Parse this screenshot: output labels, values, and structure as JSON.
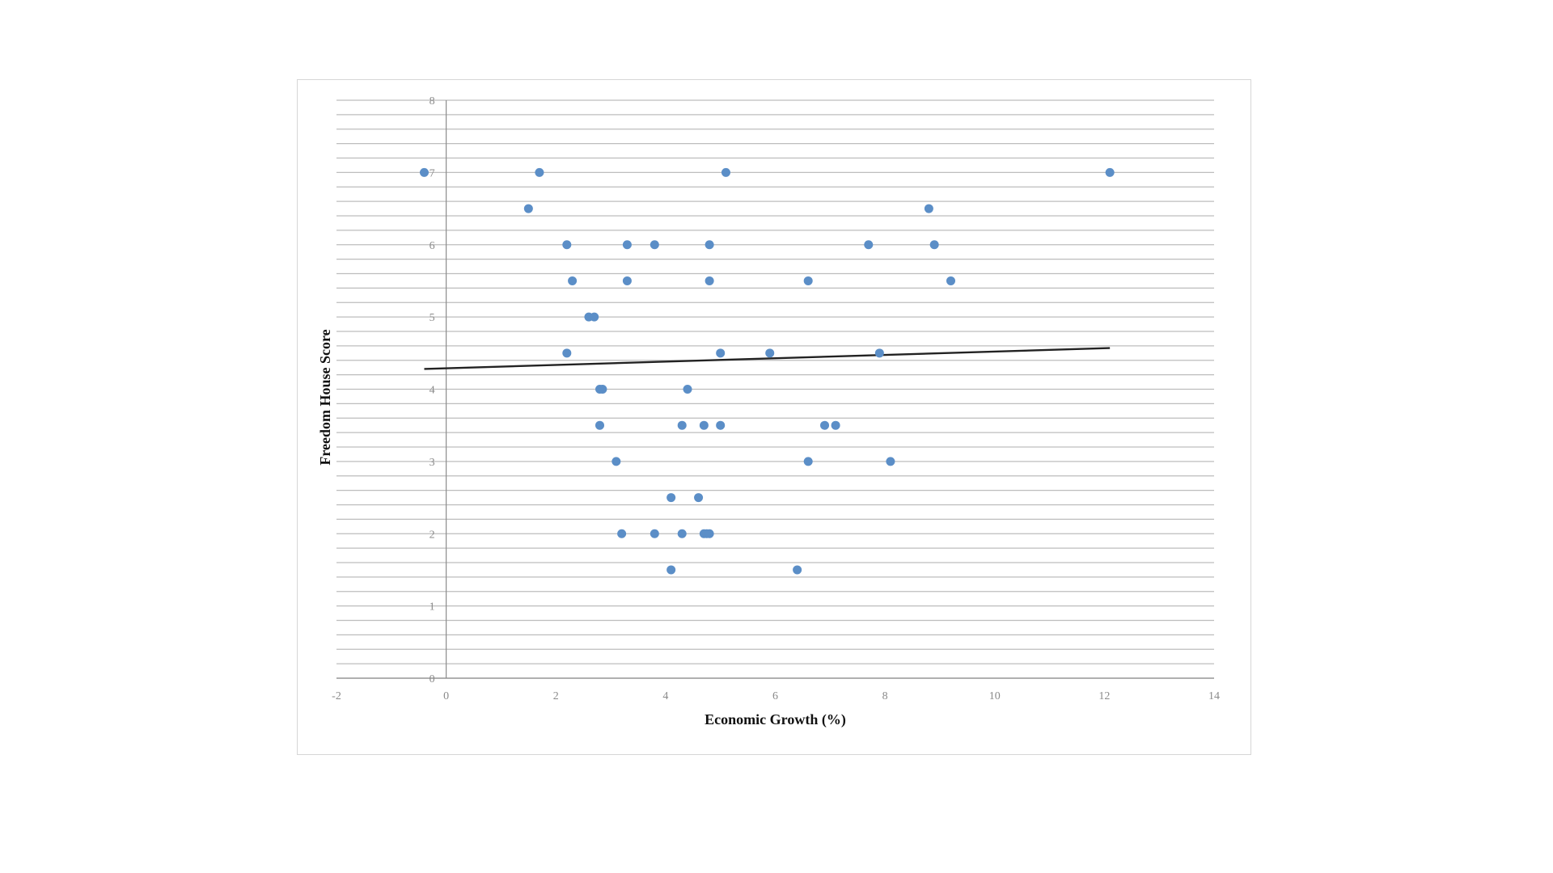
{
  "chart_data": {
    "type": "scatter",
    "title": "",
    "xlabel": "Economic Growth (%)",
    "ylabel": "Freedom House Score",
    "xlim": [
      -2,
      14
    ],
    "ylim": [
      0,
      8
    ],
    "x_ticks": [
      "-2",
      "0",
      "2",
      "4",
      "6",
      "8",
      "10",
      "12",
      "14"
    ],
    "y_ticks": [
      "0",
      "1",
      "2",
      "3",
      "4",
      "5",
      "6",
      "7",
      "8"
    ],
    "minor_gridline_step": 0.2,
    "grid": true,
    "legend": "none",
    "series": [
      {
        "marker_color": "#5b8ec7",
        "points": [
          [
            -0.4,
            7.0
          ],
          [
            1.7,
            7.0
          ],
          [
            5.1,
            7.0
          ],
          [
            12.1,
            7.0
          ],
          [
            1.5,
            6.5
          ],
          [
            8.8,
            6.5
          ],
          [
            2.2,
            6.0
          ],
          [
            3.3,
            6.0
          ],
          [
            3.8,
            6.0
          ],
          [
            4.8,
            6.0
          ],
          [
            7.7,
            6.0
          ],
          [
            8.9,
            6.0
          ],
          [
            2.3,
            5.5
          ],
          [
            3.3,
            5.5
          ],
          [
            4.8,
            5.5
          ],
          [
            6.6,
            5.5
          ],
          [
            9.2,
            5.5
          ],
          [
            2.6,
            5.0
          ],
          [
            2.7,
            5.0
          ],
          [
            2.2,
            4.5
          ],
          [
            5.0,
            4.5
          ],
          [
            5.9,
            4.5
          ],
          [
            7.9,
            4.5
          ],
          [
            2.8,
            4.0
          ],
          [
            2.85,
            4.0
          ],
          [
            4.4,
            4.0
          ],
          [
            2.8,
            3.5
          ],
          [
            4.3,
            3.5
          ],
          [
            4.7,
            3.5
          ],
          [
            5.0,
            3.5
          ],
          [
            6.9,
            3.5
          ],
          [
            7.1,
            3.5
          ],
          [
            3.1,
            3.0
          ],
          [
            6.6,
            3.0
          ],
          [
            8.1,
            3.0
          ],
          [
            4.1,
            2.5
          ],
          [
            4.6,
            2.5
          ],
          [
            3.2,
            2.0
          ],
          [
            3.8,
            2.0
          ],
          [
            4.3,
            2.0
          ],
          [
            4.7,
            2.0
          ],
          [
            4.75,
            2.0
          ],
          [
            4.8,
            2.0
          ],
          [
            4.1,
            1.5
          ],
          [
            6.4,
            1.5
          ]
        ]
      }
    ],
    "trendline": {
      "color": "#222222",
      "from": [
        -0.4,
        4.28
      ],
      "to": [
        12.1,
        4.57
      ]
    }
  }
}
